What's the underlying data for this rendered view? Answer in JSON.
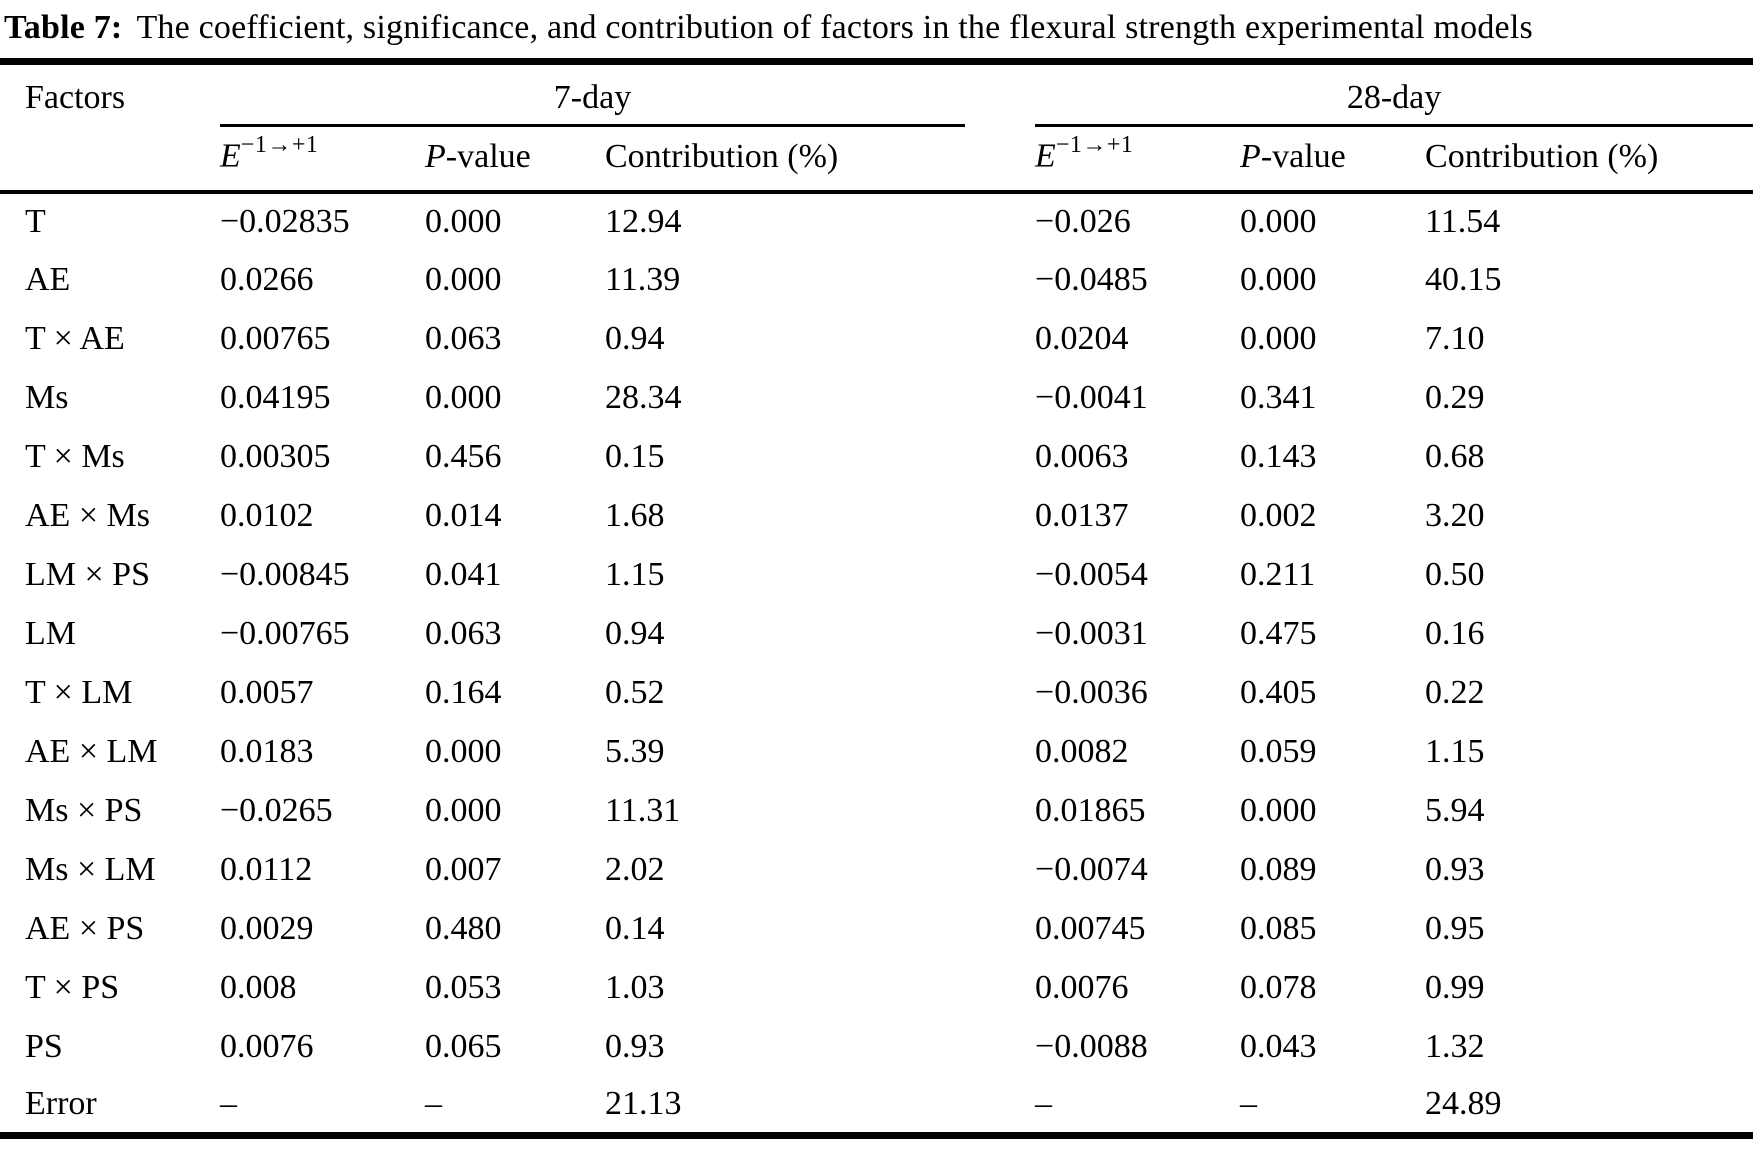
{
  "caption": {
    "label": "Table 7:",
    "text": "The coefficient, significance, and contribution of factors in the flexural strength experimental models"
  },
  "colors": {
    "text": "#000000",
    "background": "#ffffff",
    "rule": "#000000"
  },
  "table": {
    "headers": {
      "factors": "Factors",
      "group_7day": "7-day",
      "group_28day": "28-day",
      "effect_base": "E",
      "effect_sup": "−1→+1",
      "p_italic": "P",
      "p_rest": "-value",
      "contribution": "Contribution (%)"
    },
    "rows": [
      {
        "factor": "T",
        "d7": [
          "−0.02835",
          "0.000",
          "12.94"
        ],
        "d28": [
          "−0.026",
          "0.000",
          "11.54"
        ]
      },
      {
        "factor": "AE",
        "d7": [
          "0.0266",
          "0.000",
          "11.39"
        ],
        "d28": [
          "−0.0485",
          "0.000",
          "40.15"
        ]
      },
      {
        "factor": "T × AE",
        "d7": [
          "0.00765",
          "0.063",
          "0.94"
        ],
        "d28": [
          "0.0204",
          "0.000",
          "7.10"
        ]
      },
      {
        "factor": "Ms",
        "d7": [
          "0.04195",
          "0.000",
          "28.34"
        ],
        "d28": [
          "−0.0041",
          "0.341",
          "0.29"
        ]
      },
      {
        "factor": "T × Ms",
        "d7": [
          "0.00305",
          "0.456",
          "0.15"
        ],
        "d28": [
          "0.0063",
          "0.143",
          "0.68"
        ]
      },
      {
        "factor": "AE × Ms",
        "d7": [
          "0.0102",
          "0.014",
          "1.68"
        ],
        "d28": [
          "0.0137",
          "0.002",
          "3.20"
        ]
      },
      {
        "factor": "LM × PS",
        "d7": [
          "−0.00845",
          "0.041",
          "1.15"
        ],
        "d28": [
          "−0.0054",
          "0.211",
          "0.50"
        ]
      },
      {
        "factor": "LM",
        "d7": [
          "−0.00765",
          "0.063",
          "0.94"
        ],
        "d28": [
          "−0.0031",
          "0.475",
          "0.16"
        ]
      },
      {
        "factor": "T × LM",
        "d7": [
          "0.0057",
          "0.164",
          "0.52"
        ],
        "d28": [
          "−0.0036",
          "0.405",
          "0.22"
        ]
      },
      {
        "factor": "AE × LM",
        "d7": [
          "0.0183",
          "0.000",
          "5.39"
        ],
        "d28": [
          "0.0082",
          "0.059",
          "1.15"
        ]
      },
      {
        "factor": "Ms × PS",
        "d7": [
          "−0.0265",
          "0.000",
          "11.31"
        ],
        "d28": [
          "0.01865",
          "0.000",
          "5.94"
        ]
      },
      {
        "factor": "Ms × LM",
        "d7": [
          "0.0112",
          "0.007",
          "2.02"
        ],
        "d28": [
          "−0.0074",
          "0.089",
          "0.93"
        ]
      },
      {
        "factor": "AE × PS",
        "d7": [
          "0.0029",
          "0.480",
          "0.14"
        ],
        "d28": [
          "0.00745",
          "0.085",
          "0.95"
        ]
      },
      {
        "factor": "T × PS",
        "d7": [
          "0.008",
          "0.053",
          "1.03"
        ],
        "d28": [
          "0.0076",
          "0.078",
          "0.99"
        ]
      },
      {
        "factor": "PS",
        "d7": [
          "0.0076",
          "0.065",
          "0.93"
        ],
        "d28": [
          "−0.0088",
          "0.043",
          "1.32"
        ]
      },
      {
        "factor": "Error",
        "d7": [
          "–",
          "–",
          "21.13"
        ],
        "d28": [
          "–",
          "–",
          "24.89"
        ]
      }
    ]
  }
}
